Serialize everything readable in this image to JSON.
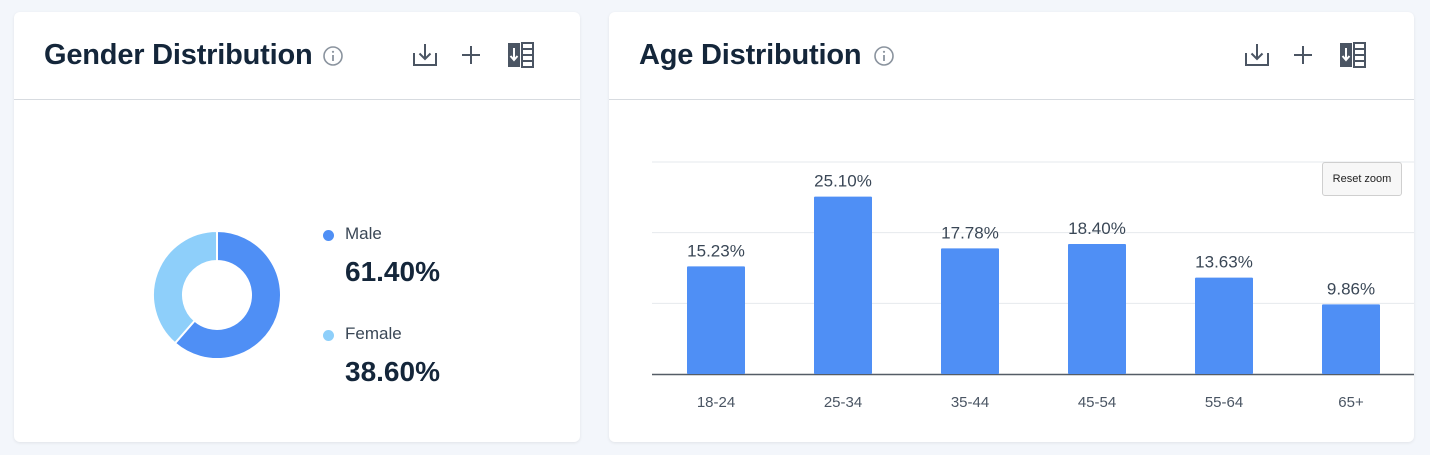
{
  "colors": {
    "bar": "#4f8ff5",
    "male": "#4f8ff5",
    "female": "#8ecffa",
    "icon": "#4b5563"
  },
  "toolbar_icons": [
    "info-icon",
    "download-icon",
    "plus-icon",
    "export-table-icon"
  ],
  "gender_card": {
    "title": "Gender Distribution",
    "legend": [
      {
        "label": "Male",
        "value": "61.40%"
      },
      {
        "label": "Female",
        "value": "38.60%"
      }
    ]
  },
  "age_card": {
    "title": "Age Distribution",
    "reset_zoom_label": "Reset zoom"
  },
  "chart_data": [
    {
      "type": "pie",
      "donut": true,
      "categories": [
        "Male",
        "Female"
      ],
      "values": [
        61.4,
        38.6
      ],
      "legend": "right"
    },
    {
      "type": "bar",
      "categories": [
        "18-24",
        "25-34",
        "35-44",
        "45-54",
        "55-64",
        "65+"
      ],
      "values": [
        15.23,
        25.1,
        17.78,
        18.4,
        13.63,
        9.86
      ],
      "data_labels": [
        "15.23%",
        "25.10%",
        "17.78%",
        "18.40%",
        "13.63%",
        "9.86%"
      ],
      "ylim": [
        0,
        30
      ],
      "grid": true,
      "legend": "none"
    }
  ]
}
